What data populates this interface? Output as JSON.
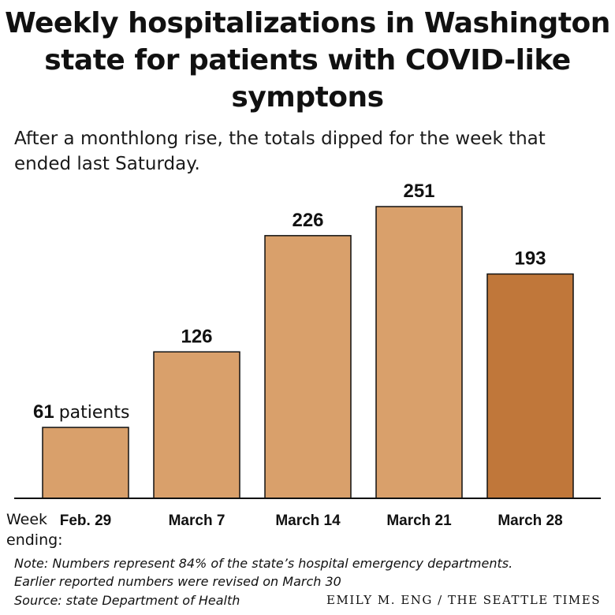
{
  "chart_data": {
    "type": "bar",
    "title": "Weekly hospitalizations in Washington state for patients with COVID-like symptons",
    "subtitle": "After a monthlong rise, the totals dipped for the week that ended last Saturday.",
    "xlabel": "Week ending:",
    "categories": [
      "Feb. 29",
      "March 7",
      "March 14",
      "March 21",
      "March 28"
    ],
    "values": [
      61,
      126,
      226,
      251,
      193
    ],
    "data_labels": [
      "61",
      "126",
      "226",
      "251",
      "193"
    ],
    "first_label_unit": "patients",
    "highlight_index": 4,
    "ylim": [
      0,
      251
    ],
    "grid": false,
    "legend": "none"
  },
  "colors": {
    "bar": "#d9a06b",
    "highlight": "#c0773a",
    "bar_stroke": "#111111"
  },
  "footer": {
    "note_line1": "Note: Numbers represent 84% of the state’s hospital emergency departments.",
    "note_line2": "Earlier reported numbers were revised on March 30",
    "source": "Source: state Department of Health",
    "credit": "EMILY M. ENG / THE SEATTLE TIMES"
  }
}
